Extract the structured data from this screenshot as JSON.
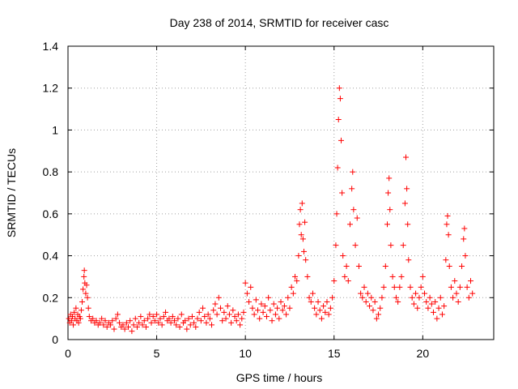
{
  "chart_data": {
    "type": "scatter",
    "title": "Day 238 of 2014, SRMTID for receiver casc",
    "xlabel": "GPS time / hours",
    "ylabel": "SRMTID / TECUs",
    "xlim": [
      0,
      24
    ],
    "ylim": [
      0,
      1.4
    ],
    "xticks": [
      0,
      5,
      10,
      15,
      20
    ],
    "yticks": [
      0,
      0.2,
      0.4,
      0.6,
      0.8,
      1,
      1.2,
      1.4
    ],
    "xtick_labels": [
      "0",
      "5",
      "10",
      "15",
      "20"
    ],
    "ytick_labels": [
      "0",
      "0.2",
      "0.4",
      "0.6",
      "0.8",
      "1",
      "1.2",
      "1.4"
    ],
    "grid": true,
    "marker": "+",
    "color": "#ff0000",
    "series": [
      {
        "name": "SRMTID",
        "points": [
          [
            0.05,
            0.1
          ],
          [
            0.1,
            0.08
          ],
          [
            0.15,
            0.12
          ],
          [
            0.2,
            0.09
          ],
          [
            0.25,
            0.11
          ],
          [
            0.3,
            0.07
          ],
          [
            0.35,
            0.13
          ],
          [
            0.4,
            0.1
          ],
          [
            0.45,
            0.15
          ],
          [
            0.5,
            0.09
          ],
          [
            0.55,
            0.12
          ],
          [
            0.6,
            0.08
          ],
          [
            0.65,
            0.11
          ],
          [
            0.7,
            0.1
          ],
          [
            0.75,
            0.14
          ],
          [
            0.8,
            0.18
          ],
          [
            0.85,
            0.24
          ],
          [
            0.9,
            0.3
          ],
          [
            0.92,
            0.33
          ],
          [
            0.95,
            0.27
          ],
          [
            1.0,
            0.22
          ],
          [
            1.05,
            0.26
          ],
          [
            1.1,
            0.2
          ],
          [
            1.15,
            0.15
          ],
          [
            1.2,
            0.11
          ],
          [
            1.3,
            0.09
          ],
          [
            1.4,
            0.1
          ],
          [
            1.5,
            0.08
          ],
          [
            1.6,
            0.09
          ],
          [
            1.7,
            0.07
          ],
          [
            1.8,
            0.08
          ],
          [
            1.9,
            0.1
          ],
          [
            2.0,
            0.07
          ],
          [
            2.1,
            0.09
          ],
          [
            2.2,
            0.06
          ],
          [
            2.3,
            0.08
          ],
          [
            2.4,
            0.07
          ],
          [
            2.5,
            0.09
          ],
          [
            2.6,
            0.05
          ],
          [
            2.7,
            0.1
          ],
          [
            2.8,
            0.12
          ],
          [
            2.9,
            0.08
          ],
          [
            3.0,
            0.06
          ],
          [
            3.1,
            0.07
          ],
          [
            3.2,
            0.05
          ],
          [
            3.3,
            0.08
          ],
          [
            3.4,
            0.06
          ],
          [
            3.5,
            0.09
          ],
          [
            3.6,
            0.04
          ],
          [
            3.7,
            0.07
          ],
          [
            3.8,
            0.1
          ],
          [
            3.9,
            0.06
          ],
          [
            4.0,
            0.08
          ],
          [
            4.1,
            0.11
          ],
          [
            4.2,
            0.07
          ],
          [
            4.3,
            0.09
          ],
          [
            4.4,
            0.06
          ],
          [
            4.5,
            0.1
          ],
          [
            4.6,
            0.12
          ],
          [
            4.7,
            0.08
          ],
          [
            4.8,
            0.11
          ],
          [
            4.9,
            0.09
          ],
          [
            5.0,
            0.12
          ],
          [
            5.1,
            0.08
          ],
          [
            5.2,
            0.1
          ],
          [
            5.3,
            0.07
          ],
          [
            5.4,
            0.11
          ],
          [
            5.5,
            0.13
          ],
          [
            5.6,
            0.09
          ],
          [
            5.7,
            0.1
          ],
          [
            5.8,
            0.08
          ],
          [
            5.9,
            0.11
          ],
          [
            6.0,
            0.09
          ],
          [
            6.1,
            0.07
          ],
          [
            6.2,
            0.1
          ],
          [
            6.3,
            0.06
          ],
          [
            6.4,
            0.12
          ],
          [
            6.5,
            0.08
          ],
          [
            6.6,
            0.09
          ],
          [
            6.7,
            0.05
          ],
          [
            6.8,
            0.1
          ],
          [
            6.9,
            0.07
          ],
          [
            7.0,
            0.11
          ],
          [
            7.1,
            0.08
          ],
          [
            7.2,
            0.06
          ],
          [
            7.3,
            0.1
          ],
          [
            7.4,
            0.13
          ],
          [
            7.5,
            0.09
          ],
          [
            7.6,
            0.15
          ],
          [
            7.7,
            0.11
          ],
          [
            7.8,
            0.08
          ],
          [
            7.9,
            0.12
          ],
          [
            8.0,
            0.1
          ],
          [
            8.1,
            0.07
          ],
          [
            8.2,
            0.14
          ],
          [
            8.3,
            0.17
          ],
          [
            8.4,
            0.12
          ],
          [
            8.5,
            0.2
          ],
          [
            8.6,
            0.15
          ],
          [
            8.7,
            0.09
          ],
          [
            8.8,
            0.13
          ],
          [
            8.9,
            0.1
          ],
          [
            9.0,
            0.16
          ],
          [
            9.1,
            0.12
          ],
          [
            9.2,
            0.08
          ],
          [
            9.3,
            0.14
          ],
          [
            9.4,
            0.11
          ],
          [
            9.5,
            0.09
          ],
          [
            9.6,
            0.12
          ],
          [
            9.7,
            0.07
          ],
          [
            9.8,
            0.1
          ],
          [
            9.9,
            0.13
          ],
          [
            10.0,
            0.27
          ],
          [
            10.1,
            0.22
          ],
          [
            10.2,
            0.18
          ],
          [
            10.3,
            0.25
          ],
          [
            10.4,
            0.15
          ],
          [
            10.5,
            0.12
          ],
          [
            10.6,
            0.19
          ],
          [
            10.7,
            0.14
          ],
          [
            10.8,
            0.1
          ],
          [
            10.9,
            0.17
          ],
          [
            11.0,
            0.13
          ],
          [
            11.1,
            0.16
          ],
          [
            11.2,
            0.11
          ],
          [
            11.3,
            0.2
          ],
          [
            11.4,
            0.14
          ],
          [
            11.5,
            0.09
          ],
          [
            11.6,
            0.17
          ],
          [
            11.7,
            0.12
          ],
          [
            11.8,
            0.15
          ],
          [
            11.9,
            0.1
          ],
          [
            12.0,
            0.18
          ],
          [
            12.1,
            0.14
          ],
          [
            12.2,
            0.16
          ],
          [
            12.3,
            0.12
          ],
          [
            12.4,
            0.2
          ],
          [
            12.5,
            0.15
          ],
          [
            12.6,
            0.25
          ],
          [
            12.7,
            0.22
          ],
          [
            12.8,
            0.3
          ],
          [
            12.9,
            0.28
          ],
          [
            13.0,
            0.4
          ],
          [
            13.05,
            0.55
          ],
          [
            13.1,
            0.62
          ],
          [
            13.15,
            0.5
          ],
          [
            13.2,
            0.65
          ],
          [
            13.25,
            0.48
          ],
          [
            13.3,
            0.42
          ],
          [
            13.35,
            0.56
          ],
          [
            13.4,
            0.38
          ],
          [
            13.5,
            0.3
          ],
          [
            13.6,
            0.2
          ],
          [
            13.7,
            0.18
          ],
          [
            13.8,
            0.22
          ],
          [
            13.9,
            0.15
          ],
          [
            14.0,
            0.12
          ],
          [
            14.1,
            0.18
          ],
          [
            14.2,
            0.14
          ],
          [
            14.3,
            0.1
          ],
          [
            14.4,
            0.16
          ],
          [
            14.5,
            0.13
          ],
          [
            14.6,
            0.18
          ],
          [
            14.7,
            0.12
          ],
          [
            14.8,
            0.15
          ],
          [
            14.9,
            0.2
          ],
          [
            15.0,
            0.28
          ],
          [
            15.1,
            0.45
          ],
          [
            15.15,
            0.6
          ],
          [
            15.2,
            0.82
          ],
          [
            15.25,
            1.05
          ],
          [
            15.3,
            1.2
          ],
          [
            15.35,
            1.15
          ],
          [
            15.4,
            0.95
          ],
          [
            15.45,
            0.7
          ],
          [
            15.5,
            0.4
          ],
          [
            15.6,
            0.3
          ],
          [
            15.7,
            0.35
          ],
          [
            15.8,
            0.28
          ],
          [
            15.9,
            0.55
          ],
          [
            16.0,
            0.72
          ],
          [
            16.05,
            0.8
          ],
          [
            16.1,
            0.62
          ],
          [
            16.2,
            0.45
          ],
          [
            16.3,
            0.58
          ],
          [
            16.4,
            0.35
          ],
          [
            16.5,
            0.22
          ],
          [
            16.6,
            0.2
          ],
          [
            16.7,
            0.25
          ],
          [
            16.8,
            0.18
          ],
          [
            16.9,
            0.22
          ],
          [
            17.0,
            0.16
          ],
          [
            17.1,
            0.2
          ],
          [
            17.2,
            0.14
          ],
          [
            17.3,
            0.18
          ],
          [
            17.4,
            0.1
          ],
          [
            17.5,
            0.12
          ],
          [
            17.6,
            0.15
          ],
          [
            17.7,
            0.2
          ],
          [
            17.8,
            0.25
          ],
          [
            17.9,
            0.35
          ],
          [
            18.0,
            0.55
          ],
          [
            18.05,
            0.7
          ],
          [
            18.1,
            0.77
          ],
          [
            18.15,
            0.62
          ],
          [
            18.2,
            0.45
          ],
          [
            18.3,
            0.3
          ],
          [
            18.4,
            0.25
          ],
          [
            18.5,
            0.2
          ],
          [
            18.6,
            0.18
          ],
          [
            18.7,
            0.25
          ],
          [
            18.8,
            0.3
          ],
          [
            18.9,
            0.45
          ],
          [
            19.0,
            0.65
          ],
          [
            19.05,
            0.87
          ],
          [
            19.1,
            0.72
          ],
          [
            19.15,
            0.55
          ],
          [
            19.2,
            0.38
          ],
          [
            19.3,
            0.25
          ],
          [
            19.4,
            0.2
          ],
          [
            19.5,
            0.17
          ],
          [
            19.6,
            0.22
          ],
          [
            19.7,
            0.15
          ],
          [
            19.8,
            0.2
          ],
          [
            19.9,
            0.25
          ],
          [
            20.0,
            0.3
          ],
          [
            20.1,
            0.22
          ],
          [
            20.2,
            0.18
          ],
          [
            20.3,
            0.15
          ],
          [
            20.4,
            0.2
          ],
          [
            20.5,
            0.17
          ],
          [
            20.6,
            0.13
          ],
          [
            20.7,
            0.18
          ],
          [
            20.8,
            0.1
          ],
          [
            20.9,
            0.15
          ],
          [
            21.0,
            0.2
          ],
          [
            21.1,
            0.12
          ],
          [
            21.2,
            0.16
          ],
          [
            21.3,
            0.38
          ],
          [
            21.35,
            0.55
          ],
          [
            21.4,
            0.59
          ],
          [
            21.45,
            0.5
          ],
          [
            21.5,
            0.35
          ],
          [
            21.6,
            0.25
          ],
          [
            21.7,
            0.2
          ],
          [
            21.8,
            0.28
          ],
          [
            21.9,
            0.22
          ],
          [
            22.0,
            0.18
          ],
          [
            22.1,
            0.25
          ],
          [
            22.2,
            0.35
          ],
          [
            22.3,
            0.48
          ],
          [
            22.35,
            0.53
          ],
          [
            22.4,
            0.4
          ],
          [
            22.5,
            0.25
          ],
          [
            22.6,
            0.2
          ],
          [
            22.7,
            0.28
          ],
          [
            22.8,
            0.22
          ]
        ]
      }
    ]
  }
}
